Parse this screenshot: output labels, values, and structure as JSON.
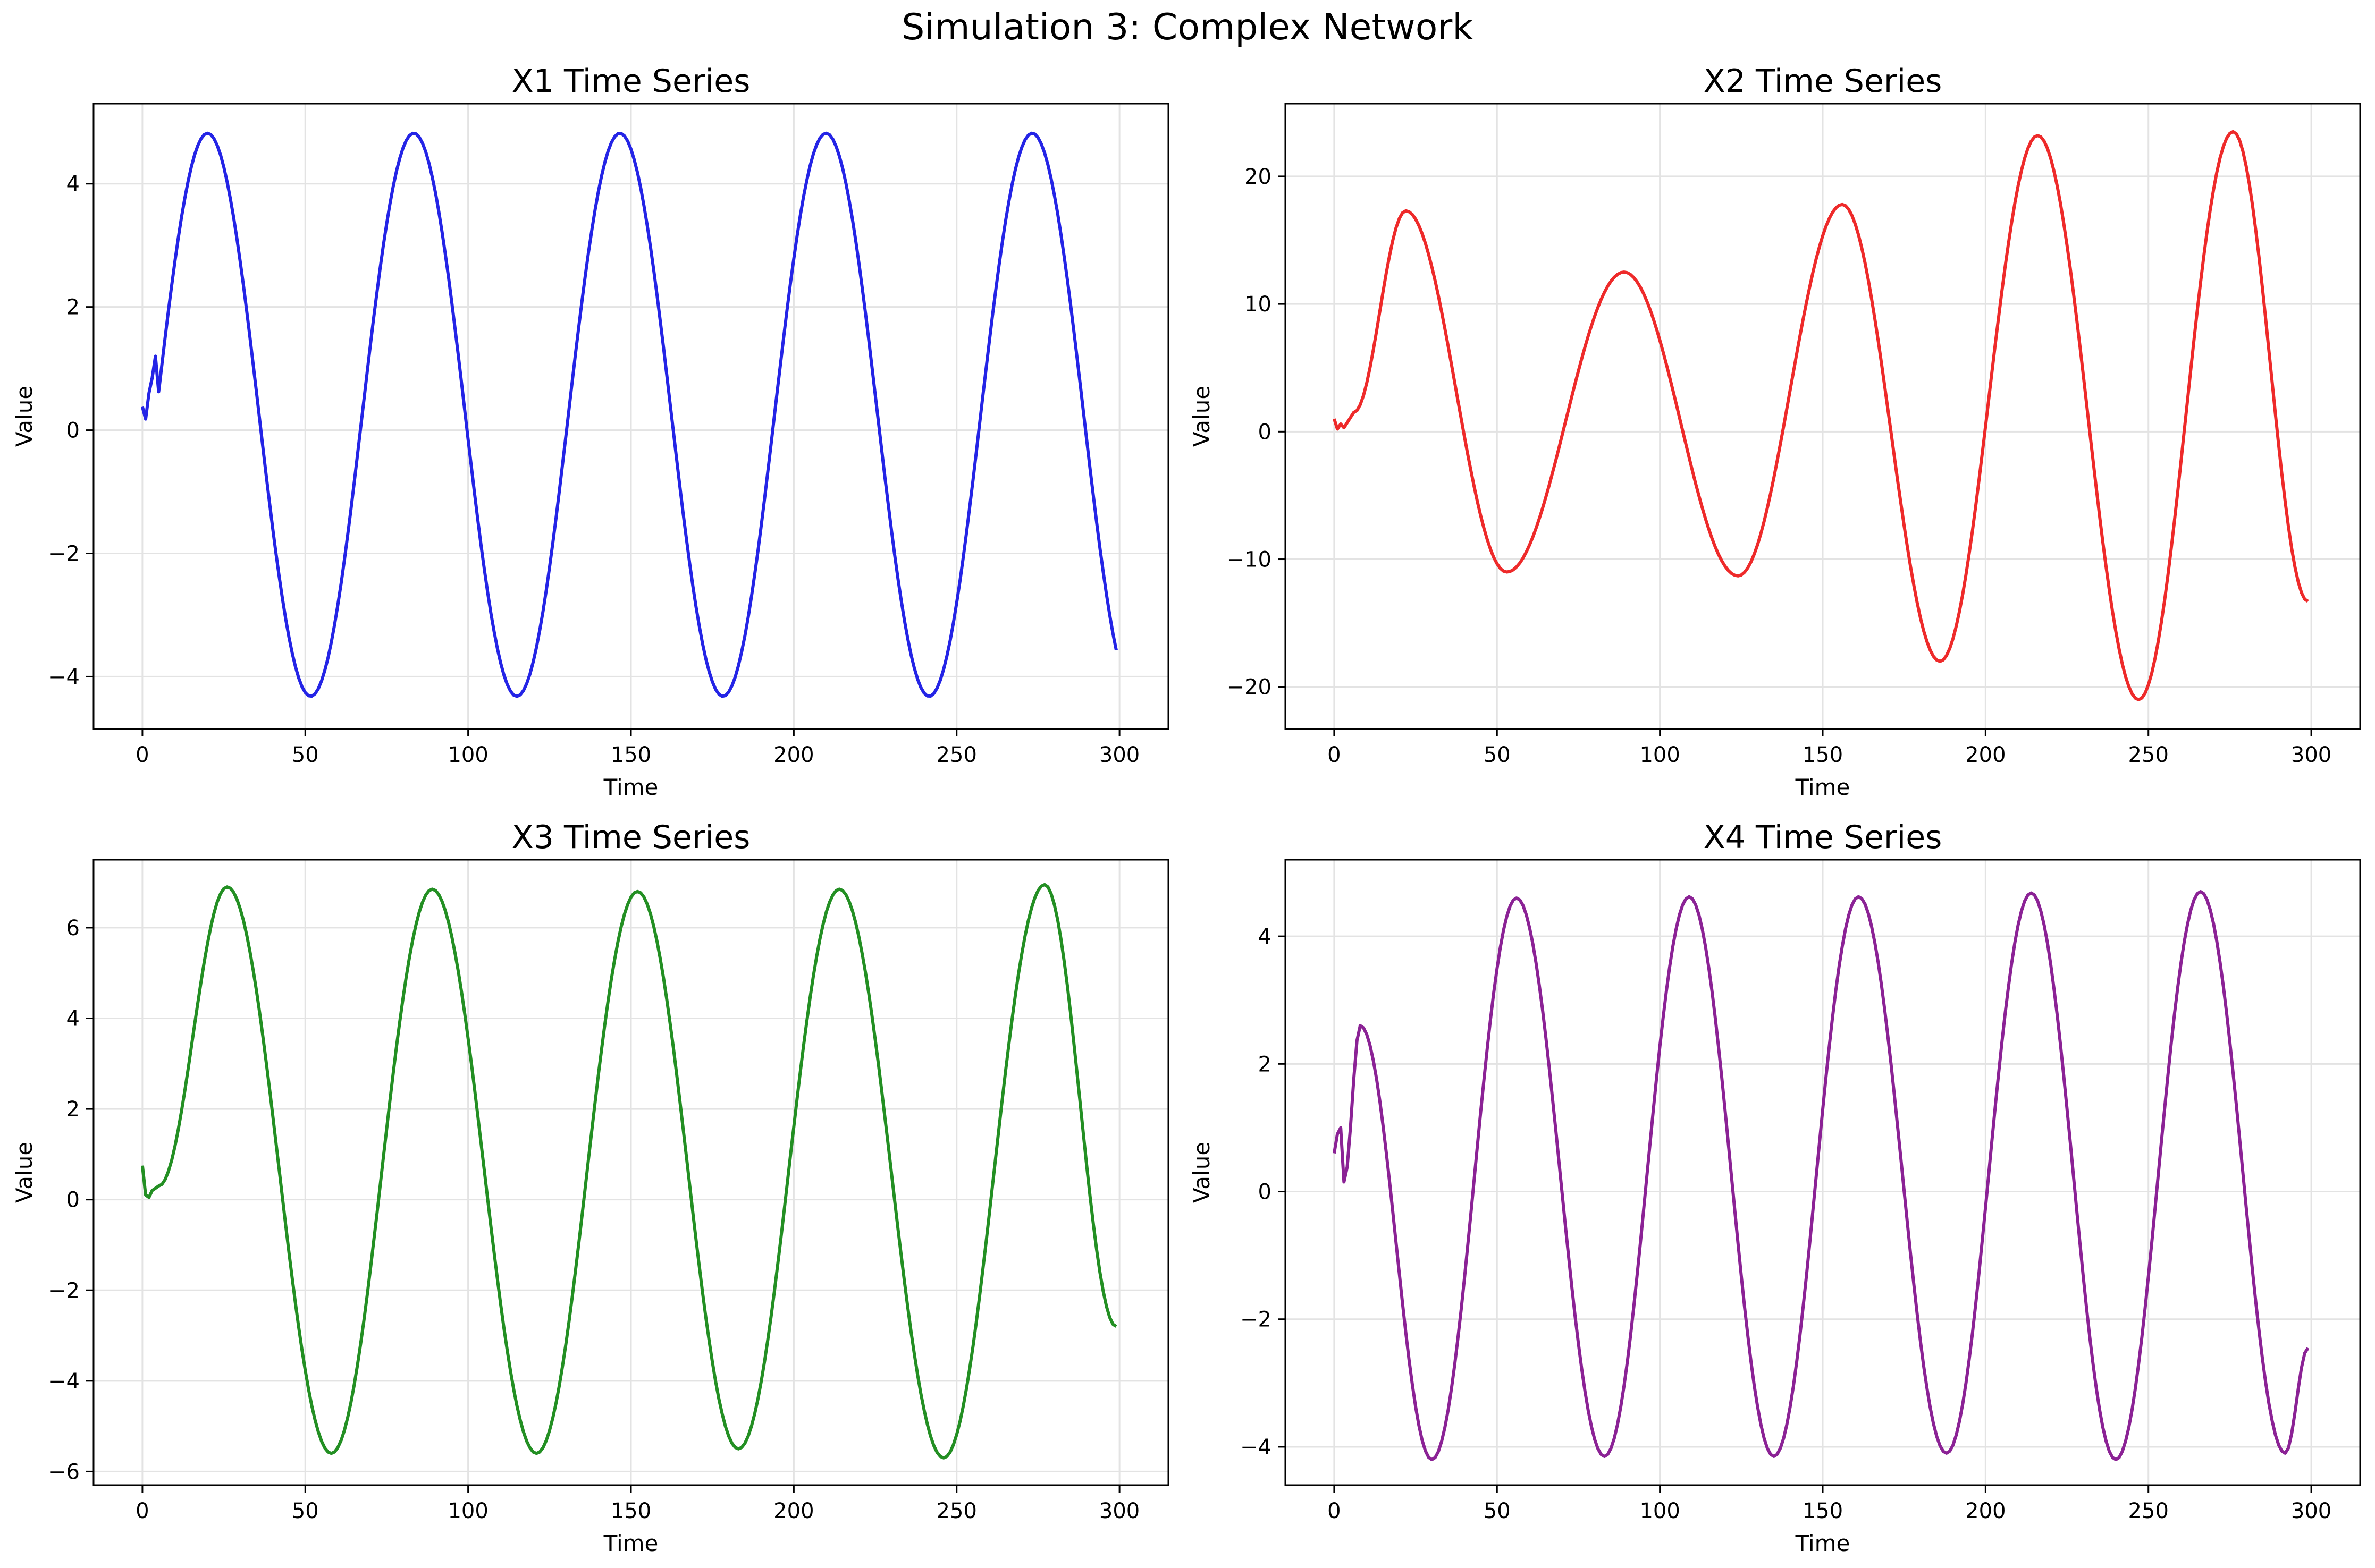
{
  "figure": {
    "title": "Simulation 3: Complex Network"
  },
  "chart_data": [
    {
      "type": "line",
      "title": "X1 Time Series",
      "xlabel": "Time",
      "ylabel": "Value",
      "xlim": [
        -15,
        315
      ],
      "ylim": [
        -4.85,
        5.3
      ],
      "xticks": [
        0,
        50,
        100,
        150,
        200,
        250,
        300
      ],
      "yticks": [
        -4,
        -2,
        0,
        2,
        4
      ],
      "grid": true,
      "series": [
        {
          "color": "#2424e6",
          "mean": 0.25,
          "amp": 4.57,
          "period": 63.3,
          "peak_t": 20,
          "start_values": [
            0.38,
            0.18,
            0.6,
            0.85,
            1.2
          ],
          "x_end": 299,
          "values_note": "x values 0..299 step 1"
        }
      ]
    },
    {
      "type": "line",
      "title": "X2 Time Series",
      "xlabel": "Time",
      "ylabel": "Value",
      "xlim": [
        -15,
        315
      ],
      "ylim": [
        -23.3,
        25.7
      ],
      "xticks": [
        0,
        50,
        100,
        150,
        200,
        250,
        300
      ],
      "yticks": [
        -20,
        -10,
        0,
        10,
        20
      ],
      "grid": true,
      "series": [
        {
          "color": "#ee2a2a",
          "extrema": [
            [
              0,
              1.0
            ],
            [
              1,
              0.2
            ],
            [
              2,
              0.6
            ],
            [
              3,
              0.3
            ],
            [
              6,
              1.5
            ],
            [
              22,
              17.3
            ],
            [
              53,
              -11.0
            ],
            [
              89,
              12.5
            ],
            [
              124,
              -11.3
            ],
            [
              156,
              17.8
            ],
            [
              186,
              -18.0
            ],
            [
              216,
              23.2
            ],
            [
              247,
              -21.0
            ],
            [
              276,
              23.5
            ],
            [
              299,
              -13.3
            ]
          ],
          "x_end": 299
        }
      ]
    },
    {
      "type": "line",
      "title": "X3 Time Series",
      "xlabel": "Time",
      "ylabel": "Value",
      "xlim": [
        -15,
        315
      ],
      "ylim": [
        -6.3,
        7.5
      ],
      "xticks": [
        0,
        50,
        100,
        150,
        200,
        250,
        300
      ],
      "yticks": [
        -6,
        -4,
        -2,
        0,
        2,
        4,
        6
      ],
      "grid": true,
      "series": [
        {
          "color": "#238f23",
          "extrema": [
            [
              0,
              0.75
            ],
            [
              1,
              0.1
            ],
            [
              2,
              0.05
            ],
            [
              3,
              0.2
            ],
            [
              5,
              0.3
            ],
            [
              26,
              6.9
            ],
            [
              58,
              -5.6
            ],
            [
              89,
              6.85
            ],
            [
              121,
              -5.6
            ],
            [
              152,
              6.8
            ],
            [
              183,
              -5.5
            ],
            [
              214,
              6.85
            ],
            [
              246,
              -5.7
            ],
            [
              277,
              6.95
            ],
            [
              299,
              -2.8
            ]
          ],
          "x_end": 299
        }
      ]
    },
    {
      "type": "line",
      "title": "X4 Time Series",
      "xlabel": "Time",
      "ylabel": "Value",
      "xlim": [
        -15,
        315
      ],
      "ylim": [
        -4.6,
        5.2
      ],
      "xticks": [
        0,
        50,
        100,
        150,
        200,
        250,
        300
      ],
      "yticks": [
        -4,
        -2,
        0,
        2,
        4
      ],
      "grid": true,
      "series": [
        {
          "color": "#8b2295",
          "extrema": [
            [
              0,
              0.6
            ],
            [
              1,
              0.9
            ],
            [
              2,
              1.0
            ],
            [
              3,
              0.15
            ],
            [
              8,
              2.6
            ],
            [
              30,
              -4.2
            ],
            [
              56,
              4.6
            ],
            [
              83,
              -4.15
            ],
            [
              109,
              4.62
            ],
            [
              135,
              -4.15
            ],
            [
              161,
              4.62
            ],
            [
              188,
              -4.1
            ],
            [
              214,
              4.68
            ],
            [
              240,
              -4.2
            ],
            [
              266,
              4.7
            ],
            [
              292,
              -4.1
            ],
            [
              299,
              -2.45
            ]
          ],
          "x_end": 299
        }
      ]
    }
  ]
}
